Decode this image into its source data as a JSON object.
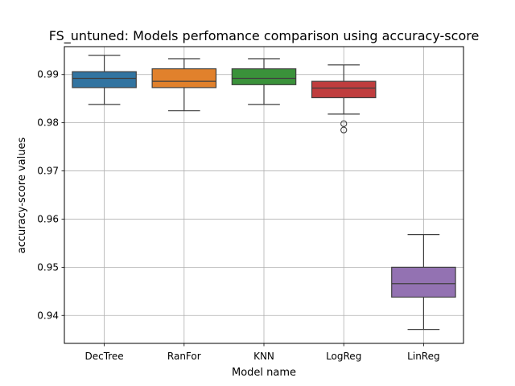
{
  "chart_data": {
    "type": "box",
    "title": "FS_untuned: Models perfomance comparison using accuracy-score",
    "xlabel": "Model name",
    "ylabel": "accuracy-score values",
    "ylim": [
      0.9342,
      0.9958
    ],
    "yticks": [
      0.94,
      0.95,
      0.96,
      0.97,
      0.98,
      0.99
    ],
    "ytick_labels": [
      "0.94",
      "0.95",
      "0.96",
      "0.97",
      "0.98",
      "0.99"
    ],
    "grid": true,
    "categories": [
      "DecTree",
      "RanFor",
      "KNN",
      "LogReg",
      "LinReg"
    ],
    "boxes": [
      {
        "name": "DecTree",
        "whisker_low": 0.9838,
        "q1": 0.9873,
        "median": 0.9892,
        "q3": 0.9906,
        "whisker_high": 0.994,
        "outliers": [],
        "color": "#3274a1"
      },
      {
        "name": "RanFor",
        "whisker_low": 0.9825,
        "q1": 0.9873,
        "median": 0.9886,
        "q3": 0.9912,
        "whisker_high": 0.9933,
        "outliers": [],
        "color": "#e1812c"
      },
      {
        "name": "KNN",
        "whisker_low": 0.9838,
        "q1": 0.9879,
        "median": 0.9892,
        "q3": 0.9912,
        "whisker_high": 0.9933,
        "outliers": [],
        "color": "#3a923a"
      },
      {
        "name": "LogReg",
        "whisker_low": 0.9818,
        "q1": 0.9852,
        "median": 0.9872,
        "q3": 0.9886,
        "whisker_high": 0.992,
        "outliers": [
          0.9798,
          0.9785
        ],
        "color": "#c03d3e"
      },
      {
        "name": "LinReg",
        "whisker_low": 0.9371,
        "q1": 0.9438,
        "median": 0.9466,
        "q3": 0.95,
        "whisker_high": 0.9568,
        "outliers": [],
        "color": "#9372b2"
      }
    ]
  }
}
